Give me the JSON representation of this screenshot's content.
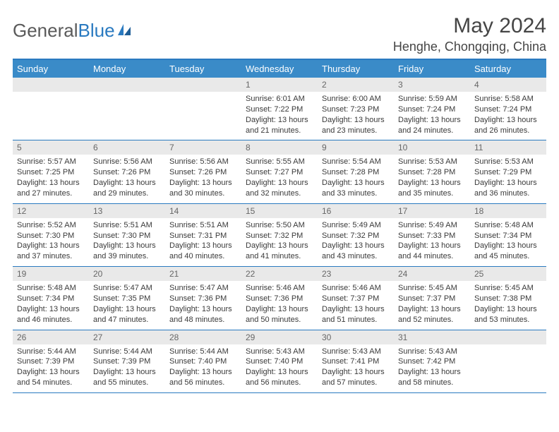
{
  "brand": {
    "part1": "General",
    "part2": "Blue"
  },
  "title": "May 2024",
  "location": "Henghe, Chongqing, China",
  "colors": {
    "header_bg": "#3a8bc8",
    "border": "#2a7ac0",
    "date_bg": "#e9e9e9",
    "text": "#3a3a3a",
    "muted": "#676767"
  },
  "day_names": [
    "Sunday",
    "Monday",
    "Tuesday",
    "Wednesday",
    "Thursday",
    "Friday",
    "Saturday"
  ],
  "weeks": [
    [
      {
        "date": "",
        "empty": true
      },
      {
        "date": "",
        "empty": true
      },
      {
        "date": "",
        "empty": true
      },
      {
        "date": "1",
        "sunrise": "6:01 AM",
        "sunset": "7:22 PM",
        "daylight": "13 hours and 21 minutes."
      },
      {
        "date": "2",
        "sunrise": "6:00 AM",
        "sunset": "7:23 PM",
        "daylight": "13 hours and 23 minutes."
      },
      {
        "date": "3",
        "sunrise": "5:59 AM",
        "sunset": "7:24 PM",
        "daylight": "13 hours and 24 minutes."
      },
      {
        "date": "4",
        "sunrise": "5:58 AM",
        "sunset": "7:24 PM",
        "daylight": "13 hours and 26 minutes."
      }
    ],
    [
      {
        "date": "5",
        "sunrise": "5:57 AM",
        "sunset": "7:25 PM",
        "daylight": "13 hours and 27 minutes."
      },
      {
        "date": "6",
        "sunrise": "5:56 AM",
        "sunset": "7:26 PM",
        "daylight": "13 hours and 29 minutes."
      },
      {
        "date": "7",
        "sunrise": "5:56 AM",
        "sunset": "7:26 PM",
        "daylight": "13 hours and 30 minutes."
      },
      {
        "date": "8",
        "sunrise": "5:55 AM",
        "sunset": "7:27 PM",
        "daylight": "13 hours and 32 minutes."
      },
      {
        "date": "9",
        "sunrise": "5:54 AM",
        "sunset": "7:28 PM",
        "daylight": "13 hours and 33 minutes."
      },
      {
        "date": "10",
        "sunrise": "5:53 AM",
        "sunset": "7:28 PM",
        "daylight": "13 hours and 35 minutes."
      },
      {
        "date": "11",
        "sunrise": "5:53 AM",
        "sunset": "7:29 PM",
        "daylight": "13 hours and 36 minutes."
      }
    ],
    [
      {
        "date": "12",
        "sunrise": "5:52 AM",
        "sunset": "7:30 PM",
        "daylight": "13 hours and 37 minutes."
      },
      {
        "date": "13",
        "sunrise": "5:51 AM",
        "sunset": "7:30 PM",
        "daylight": "13 hours and 39 minutes."
      },
      {
        "date": "14",
        "sunrise": "5:51 AM",
        "sunset": "7:31 PM",
        "daylight": "13 hours and 40 minutes."
      },
      {
        "date": "15",
        "sunrise": "5:50 AM",
        "sunset": "7:32 PM",
        "daylight": "13 hours and 41 minutes."
      },
      {
        "date": "16",
        "sunrise": "5:49 AM",
        "sunset": "7:32 PM",
        "daylight": "13 hours and 43 minutes."
      },
      {
        "date": "17",
        "sunrise": "5:49 AM",
        "sunset": "7:33 PM",
        "daylight": "13 hours and 44 minutes."
      },
      {
        "date": "18",
        "sunrise": "5:48 AM",
        "sunset": "7:34 PM",
        "daylight": "13 hours and 45 minutes."
      }
    ],
    [
      {
        "date": "19",
        "sunrise": "5:48 AM",
        "sunset": "7:34 PM",
        "daylight": "13 hours and 46 minutes."
      },
      {
        "date": "20",
        "sunrise": "5:47 AM",
        "sunset": "7:35 PM",
        "daylight": "13 hours and 47 minutes."
      },
      {
        "date": "21",
        "sunrise": "5:47 AM",
        "sunset": "7:36 PM",
        "daylight": "13 hours and 48 minutes."
      },
      {
        "date": "22",
        "sunrise": "5:46 AM",
        "sunset": "7:36 PM",
        "daylight": "13 hours and 50 minutes."
      },
      {
        "date": "23",
        "sunrise": "5:46 AM",
        "sunset": "7:37 PM",
        "daylight": "13 hours and 51 minutes."
      },
      {
        "date": "24",
        "sunrise": "5:45 AM",
        "sunset": "7:37 PM",
        "daylight": "13 hours and 52 minutes."
      },
      {
        "date": "25",
        "sunrise": "5:45 AM",
        "sunset": "7:38 PM",
        "daylight": "13 hours and 53 minutes."
      }
    ],
    [
      {
        "date": "26",
        "sunrise": "5:44 AM",
        "sunset": "7:39 PM",
        "daylight": "13 hours and 54 minutes."
      },
      {
        "date": "27",
        "sunrise": "5:44 AM",
        "sunset": "7:39 PM",
        "daylight": "13 hours and 55 minutes."
      },
      {
        "date": "28",
        "sunrise": "5:44 AM",
        "sunset": "7:40 PM",
        "daylight": "13 hours and 56 minutes."
      },
      {
        "date": "29",
        "sunrise": "5:43 AM",
        "sunset": "7:40 PM",
        "daylight": "13 hours and 56 minutes."
      },
      {
        "date": "30",
        "sunrise": "5:43 AM",
        "sunset": "7:41 PM",
        "daylight": "13 hours and 57 minutes."
      },
      {
        "date": "31",
        "sunrise": "5:43 AM",
        "sunset": "7:42 PM",
        "daylight": "13 hours and 58 minutes."
      },
      {
        "date": "",
        "empty": true
      }
    ]
  ],
  "labels": {
    "sunrise": "Sunrise:",
    "sunset": "Sunset:",
    "daylight": "Daylight:"
  }
}
